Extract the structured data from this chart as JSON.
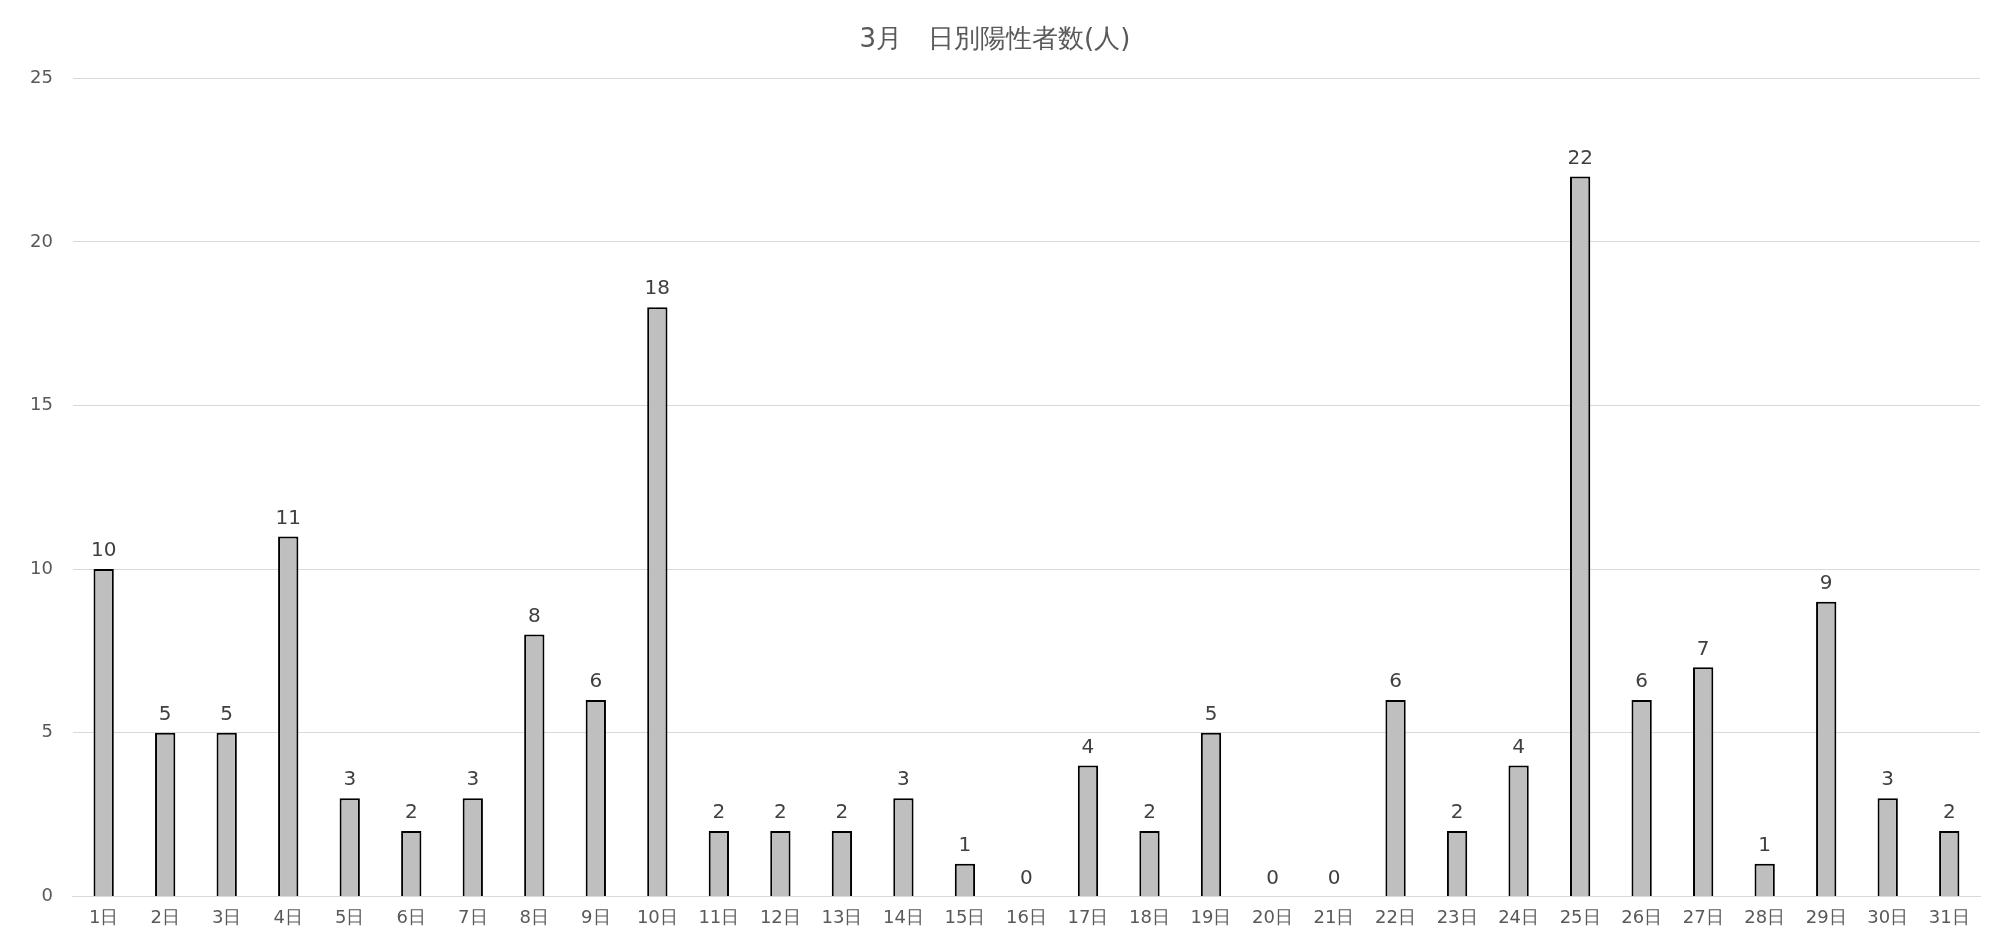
{
  "chart_data": {
    "type": "bar",
    "title": "3月　日別陽性者数(人)",
    "categories": [
      "1日",
      "2日",
      "3日",
      "4日",
      "5日",
      "6日",
      "7日",
      "8日",
      "9日",
      "10日",
      "11日",
      "12日",
      "13日",
      "14日",
      "15日",
      "16日",
      "17日",
      "18日",
      "19日",
      "20日",
      "21日",
      "22日",
      "23日",
      "24日",
      "25日",
      "26日",
      "27日",
      "28日",
      "29日",
      "30日",
      "31日"
    ],
    "values": [
      10,
      5,
      5,
      11,
      3,
      2,
      3,
      8,
      6,
      18,
      2,
      2,
      2,
      3,
      1,
      0,
      4,
      2,
      5,
      0,
      0,
      6,
      2,
      4,
      22,
      6,
      7,
      1,
      9,
      3,
      2
    ],
    "color": "#bfbfbf",
    "ylim": [
      0,
      25
    ],
    "yticks": [
      0,
      5,
      10,
      15,
      20,
      25
    ],
    "grid": "y",
    "data_labels": true,
    "legend": false
  }
}
